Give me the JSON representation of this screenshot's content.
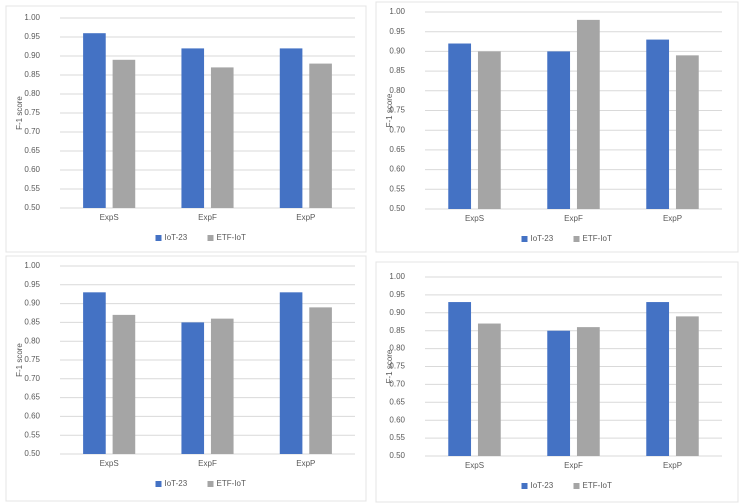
{
  "chart_data": [
    {
      "type": "bar",
      "y_label": "F-1 score",
      "categories": [
        "ExpS",
        "ExpF",
        "ExpP"
      ],
      "series": [
        {
          "name": "IoT-23",
          "color": "#4472c4",
          "values": [
            0.96,
            0.92,
            0.92
          ]
        },
        {
          "name": "ETF-IoT",
          "color": "#a5a5a5",
          "values": [
            0.89,
            0.87,
            0.88
          ]
        }
      ],
      "ylim": [
        0.5,
        1.0
      ],
      "yticks": [
        {
          "value": 0.5,
          "label": "0.50"
        },
        {
          "value": 0.55,
          "label": "0.55"
        },
        {
          "value": 0.6,
          "label": "0.60"
        },
        {
          "value": 0.65,
          "label": "0.65"
        },
        {
          "value": 0.7,
          "label": "0.70"
        },
        {
          "value": 0.75,
          "label": "0.75"
        },
        {
          "value": 0.8,
          "label": "0.80"
        },
        {
          "value": 0.85,
          "label": "0.85"
        },
        {
          "value": 0.9,
          "label": "0.90"
        },
        {
          "value": 0.95,
          "label": "0.95"
        },
        {
          "value": 1.0,
          "label": "1.00"
        }
      ],
      "grid": true,
      "legend": "bottom"
    },
    {
      "type": "bar",
      "y_label": "F-1 score",
      "categories": [
        "ExpS",
        "ExpF",
        "ExpP"
      ],
      "series": [
        {
          "name": "IoT-23",
          "color": "#4472c4",
          "values": [
            0.92,
            0.9,
            0.93
          ]
        },
        {
          "name": "ETF-IoT",
          "color": "#a5a5a5",
          "values": [
            0.9,
            0.98,
            0.89
          ]
        }
      ],
      "ylim": [
        0.5,
        1.0
      ],
      "yticks": [
        {
          "value": 0.5,
          "label": "0.50"
        },
        {
          "value": 0.55,
          "label": "0.55"
        },
        {
          "value": 0.6,
          "label": "0.60"
        },
        {
          "value": 0.65,
          "label": "0.65"
        },
        {
          "value": 0.7,
          "label": "0.70"
        },
        {
          "value": 0.75,
          "label": "0.75"
        },
        {
          "value": 0.8,
          "label": "0.80"
        },
        {
          "value": 0.85,
          "label": "0.85"
        },
        {
          "value": 0.9,
          "label": "0.90"
        },
        {
          "value": 0.95,
          "label": "0.95"
        },
        {
          "value": 1.0,
          "label": "1.00"
        }
      ],
      "grid": true,
      "legend": "bottom"
    },
    {
      "type": "bar",
      "y_label": "F-1 score",
      "categories": [
        "ExpS",
        "ExpF",
        "ExpP"
      ],
      "series": [
        {
          "name": "IoT-23",
          "color": "#4472c4",
          "values": [
            0.93,
            0.85,
            0.93
          ]
        },
        {
          "name": "ETF-IoT",
          "color": "#a5a5a5",
          "values": [
            0.87,
            0.86,
            0.89
          ]
        }
      ],
      "ylim": [
        0.5,
        1.0
      ],
      "yticks": [
        {
          "value": 0.5,
          "label": "0.50"
        },
        {
          "value": 0.55,
          "label": "0.55"
        },
        {
          "value": 0.6,
          "label": "0.60"
        },
        {
          "value": 0.65,
          "label": "0.65"
        },
        {
          "value": 0.7,
          "label": "0.70"
        },
        {
          "value": 0.75,
          "label": "0.75"
        },
        {
          "value": 0.8,
          "label": "0.80"
        },
        {
          "value": 0.85,
          "label": "0.85"
        },
        {
          "value": 0.9,
          "label": "0.90"
        },
        {
          "value": 0.95,
          "label": "0.95"
        },
        {
          "value": 1.0,
          "label": "1.00"
        }
      ],
      "grid": true,
      "legend": "bottom"
    },
    {
      "type": "bar",
      "y_label": "F-1 score",
      "categories": [
        "ExpS",
        "ExpF",
        "ExpP"
      ],
      "series": [
        {
          "name": "IoT-23",
          "color": "#4472c4",
          "values": [
            0.93,
            0.85,
            0.93
          ]
        },
        {
          "name": "ETF-IoT",
          "color": "#a5a5a5",
          "values": [
            0.87,
            0.86,
            0.89
          ]
        }
      ],
      "ylim": [
        0.5,
        1.0
      ],
      "yticks": [
        {
          "value": 0.5,
          "label": "0.50"
        },
        {
          "value": 0.55,
          "label": "0.55"
        },
        {
          "value": 0.6,
          "label": "0.60"
        },
        {
          "value": 0.65,
          "label": "0.65"
        },
        {
          "value": 0.7,
          "label": "0.70"
        },
        {
          "value": 0.75,
          "label": "0.75"
        },
        {
          "value": 0.8,
          "label": "0.80"
        },
        {
          "value": 0.85,
          "label": "0.85"
        },
        {
          "value": 0.9,
          "label": "0.90"
        },
        {
          "value": 0.95,
          "label": "0.95"
        },
        {
          "value": 1.0,
          "label": "1.00"
        }
      ],
      "grid": true,
      "legend": "bottom"
    }
  ]
}
